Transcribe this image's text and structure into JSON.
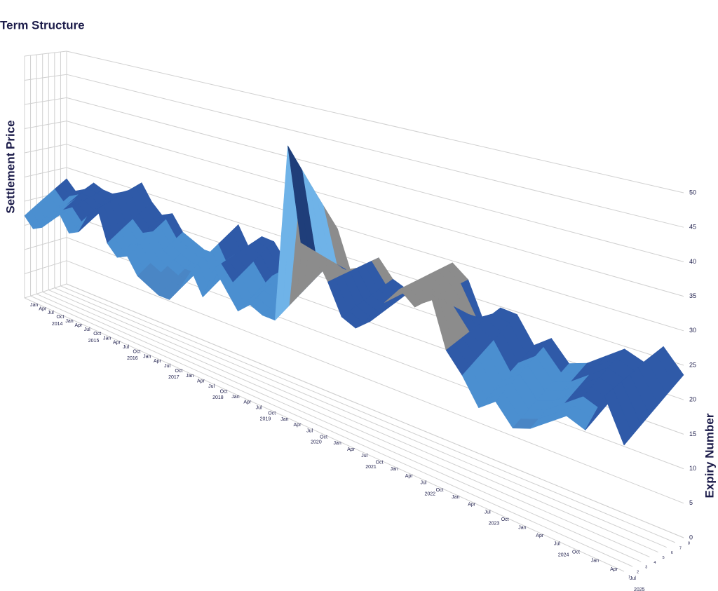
{
  "chart_data": {
    "type": "surface",
    "title": "Term Structure",
    "zlabel": "Settlement Price",
    "expiry_label": "Expiry Number",
    "categories": [
      "Jan",
      "Apr",
      "Jul",
      "Oct",
      "Jan",
      "Apr",
      "Jul",
      "Oct",
      "Jan",
      "Apr",
      "Jul",
      "Oct",
      "Jan",
      "Apr",
      "Jul",
      "Oct",
      "Jan",
      "Apr",
      "Jul",
      "Oct",
      "Jan",
      "Apr",
      "Jul",
      "Oct",
      "Jan",
      "Apr",
      "Jul",
      "Oct",
      "Jan",
      "Apr",
      "Jul",
      "Oct",
      "Jan",
      "Apr",
      "Jul",
      "Oct",
      "Jan",
      "Apr",
      "Jul",
      "Oct",
      "Jan",
      "Apr",
      "Jul",
      "Oct",
      "Jan",
      "Apr",
      "Jul"
    ],
    "year_labels": [
      "2014",
      "2015",
      "2016",
      "2017",
      "2018",
      "2019",
      "2020",
      "2021",
      "2022",
      "2023",
      "2024",
      "2025"
    ],
    "expiry_ticks": [
      1,
      2,
      3,
      4,
      5,
      6,
      7,
      8
    ],
    "zlim": [
      0,
      50
    ],
    "zticks": [
      0,
      5,
      10,
      15,
      20,
      25,
      30,
      35,
      40,
      45,
      50
    ],
    "band_colors": [
      "#2e5597",
      "#5a5a5a",
      "#4a86c5",
      "#4b8fd0",
      "#2f5aa8",
      "#8c8c8c",
      "#6fb3e8",
      "#1f3e7a",
      "#9a9a9a",
      "#5ea7e0"
    ],
    "grid": true,
    "z": [
      [
        17,
        15,
        16,
        18,
        20,
        17,
        18,
        22,
        24,
        18,
        16,
        17,
        14,
        13,
        12,
        12,
        15,
        19,
        15,
        21,
        18,
        15,
        17,
        16,
        16,
        47,
        31,
        30,
        26,
        21,
        20,
        22,
        26,
        29,
        27,
        30,
        22,
        19,
        15,
        17,
        14,
        15,
        17,
        19,
        18,
        24,
        18
      ],
      [
        17.8,
        15.8,
        16.8,
        18.8,
        20.4,
        17.8,
        18.8,
        22.4,
        24.4,
        18.8,
        16.8,
        17.8,
        14.8,
        13.8,
        12.8,
        12.8,
        15.8,
        19.8,
        15.8,
        21.4,
        18.8,
        15.8,
        17.8,
        16.8,
        16.8,
        44.5,
        29.8,
        28.8,
        26.1,
        21.4,
        20.4,
        22.4,
        26.1,
        29.1,
        27.1,
        28.8,
        22.4,
        19.8,
        15.8,
        17.8,
        14.8,
        15.8,
        17.8,
        19.8,
        18.8,
        24.4,
        18.8
      ],
      [
        18.6,
        16.6,
        17.6,
        19.6,
        20.8,
        18.6,
        19.6,
        22.8,
        24.8,
        19.6,
        17.6,
        18.6,
        15.6,
        14.6,
        13.6,
        13.6,
        16.6,
        20.6,
        16.6,
        21.8,
        19.6,
        16.6,
        18.6,
        17.6,
        17.6,
        42,
        28.6,
        27.6,
        26.2,
        21.8,
        20.8,
        22.8,
        26.2,
        29.2,
        27.2,
        27.6,
        22.8,
        20.6,
        16.6,
        18.6,
        15.6,
        16.6,
        18.6,
        20.6,
        19.6,
        24.8,
        19.6
      ],
      [
        19.4,
        17.4,
        18.4,
        20.4,
        21.2,
        19.4,
        20.4,
        23.2,
        25.2,
        20.4,
        18.4,
        19.4,
        16.4,
        15.4,
        14.4,
        14.4,
        17.4,
        21.4,
        17.4,
        22.2,
        20.4,
        17.4,
        19.4,
        18.4,
        18.4,
        39.5,
        27.4,
        26.4,
        26.3,
        22.2,
        21.2,
        23.2,
        26.3,
        29.3,
        27.3,
        26.4,
        23.2,
        21.4,
        17.4,
        19.4,
        16.4,
        17.4,
        19.4,
        21.4,
        20.4,
        25.2,
        20.4
      ],
      [
        20.2,
        18.2,
        19.2,
        21.2,
        21.6,
        20.2,
        21.2,
        23.6,
        25.6,
        21.2,
        19.2,
        20.2,
        17.2,
        16.2,
        15.2,
        15.2,
        18.2,
        22.2,
        18.2,
        22.6,
        21.2,
        18.2,
        20.2,
        19.2,
        19.2,
        37,
        26.2,
        25.2,
        26.4,
        22.6,
        21.6,
        23.6,
        26.4,
        29.4,
        27.4,
        25.2,
        23.6,
        22.2,
        18.2,
        20.2,
        17.2,
        18.2,
        20.2,
        22.2,
        21.2,
        25.6,
        21.2
      ],
      [
        21,
        19,
        20,
        22,
        22,
        21,
        22,
        24,
        26,
        22,
        20,
        21,
        18,
        17,
        16,
        16,
        19,
        23,
        19,
        23,
        22,
        19,
        21,
        20,
        20,
        34.5,
        25,
        24,
        26.5,
        23,
        22,
        24,
        26.5,
        29.5,
        27.5,
        24,
        24,
        23,
        19,
        21,
        18,
        19,
        21,
        23,
        22,
        26,
        22
      ],
      [
        21.8,
        19.8,
        20.8,
        22.8,
        22.4,
        21.8,
        22.8,
        24.4,
        26.4,
        22.8,
        20.8,
        21.8,
        18.8,
        17.8,
        16.8,
        16.8,
        19.8,
        23.8,
        19.8,
        23.4,
        22.8,
        19.8,
        21.8,
        20.8,
        20.8,
        32,
        23.8,
        22.8,
        26.6,
        23.4,
        22.4,
        24.4,
        26.6,
        29.6,
        27.6,
        22.8,
        24.4,
        23.8,
        19.8,
        21.8,
        18.8,
        19.8,
        21.8,
        23.8,
        22.8,
        26.4,
        22.8
      ],
      [
        22.6,
        20.6,
        21.6,
        23.6,
        22.8,
        22.6,
        23.6,
        24.8,
        26.8,
        23.6,
        21.6,
        22.6,
        19.6,
        18.6,
        17.6,
        17.6,
        20.6,
        24.6,
        20.6,
        23.8,
        23.6,
        20.6,
        22.6,
        21.6,
        21.6,
        29.5,
        22.6,
        21.6,
        26.7,
        23.8,
        22.8,
        24.8,
        26.7,
        29.7,
        27.7,
        21.6,
        24.8,
        24.6,
        20.6,
        22.6,
        19.6,
        20.6,
        22.6,
        24.6,
        23.6,
        26.8,
        23.6
      ]
    ]
  }
}
